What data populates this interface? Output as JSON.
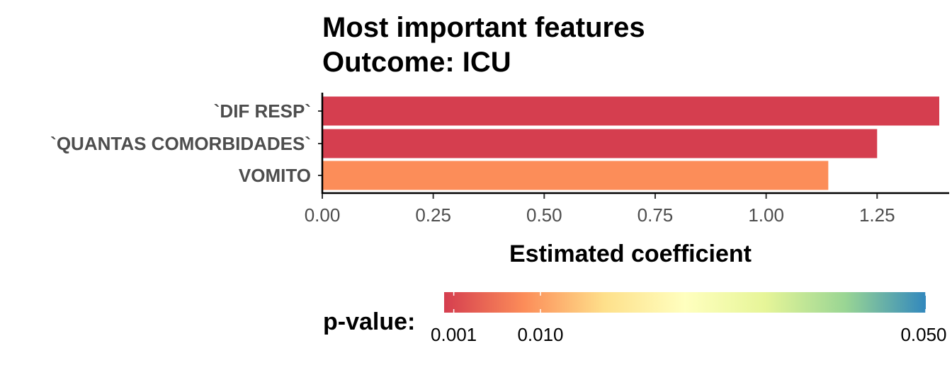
{
  "chart_data": {
    "type": "bar",
    "orientation": "horizontal",
    "title": "Most important features",
    "subtitle": "Outcome: ICU",
    "xlabel": "Estimated coefficient",
    "ylabel": "",
    "xlim": [
      0,
      1.39
    ],
    "x_ticks": [
      {
        "value": 0.0,
        "label": "0.00"
      },
      {
        "value": 0.25,
        "label": "0.25"
      },
      {
        "value": 0.5,
        "label": "0.50"
      },
      {
        "value": 0.75,
        "label": "0.75"
      },
      {
        "value": 1.0,
        "label": "1.00"
      },
      {
        "value": 1.25,
        "label": "1.25"
      }
    ],
    "grid": false,
    "categories": [
      "`DIF RESP`",
      "`QUANTAS COMORBIDADES`",
      "VOMITO"
    ],
    "values": [
      1.39,
      1.25,
      1.14
    ],
    "bar_colors": [
      "#D53E4F",
      "#D53E4F",
      "#FC8D59"
    ],
    "legend": {
      "title": "p-value:",
      "position": "bottom",
      "type": "colorbar",
      "tick_labels": [
        "0.001",
        "0.010",
        "0.050"
      ],
      "tick_values": [
        0.001,
        0.01,
        0.05
      ],
      "range": [
        0.0,
        0.05
      ],
      "palette": [
        "#D53E4F",
        "#FC8D59",
        "#FEE08B",
        "#FFFFBF",
        "#E6F598",
        "#99D594",
        "#3288BD"
      ]
    }
  }
}
